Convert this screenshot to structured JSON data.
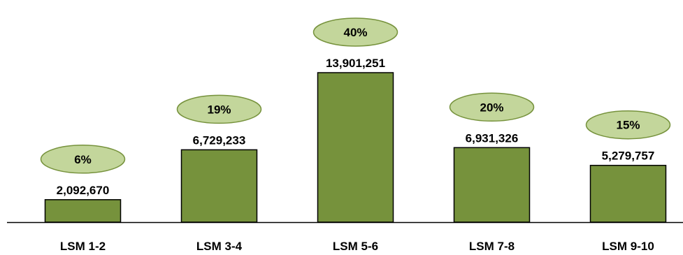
{
  "chart_data": {
    "type": "bar",
    "title": "",
    "xlabel": "",
    "ylabel": "",
    "categories": [
      "LSM 1-2",
      "LSM 3-4",
      "LSM 5-6",
      "LSM 7-8",
      "LSM 9-10"
    ],
    "values": [
      2092670,
      6729233,
      13901251,
      6931326,
      5279757
    ],
    "value_labels": [
      "2,092,670",
      "6,729,233",
      "13,901,251",
      "6,931,326",
      "5,279,757"
    ],
    "percent_labels": [
      "6%",
      "19%",
      "40%",
      "20%",
      "15%"
    ],
    "ylim": [
      0,
      15000000
    ],
    "grid": false,
    "legend": "none",
    "colors": {
      "bar_fill": "#76923c",
      "bar_stroke": "#000000",
      "bubble_fill": "#c3d69b",
      "bubble_stroke": "#76923c",
      "axis": "#000000"
    }
  }
}
